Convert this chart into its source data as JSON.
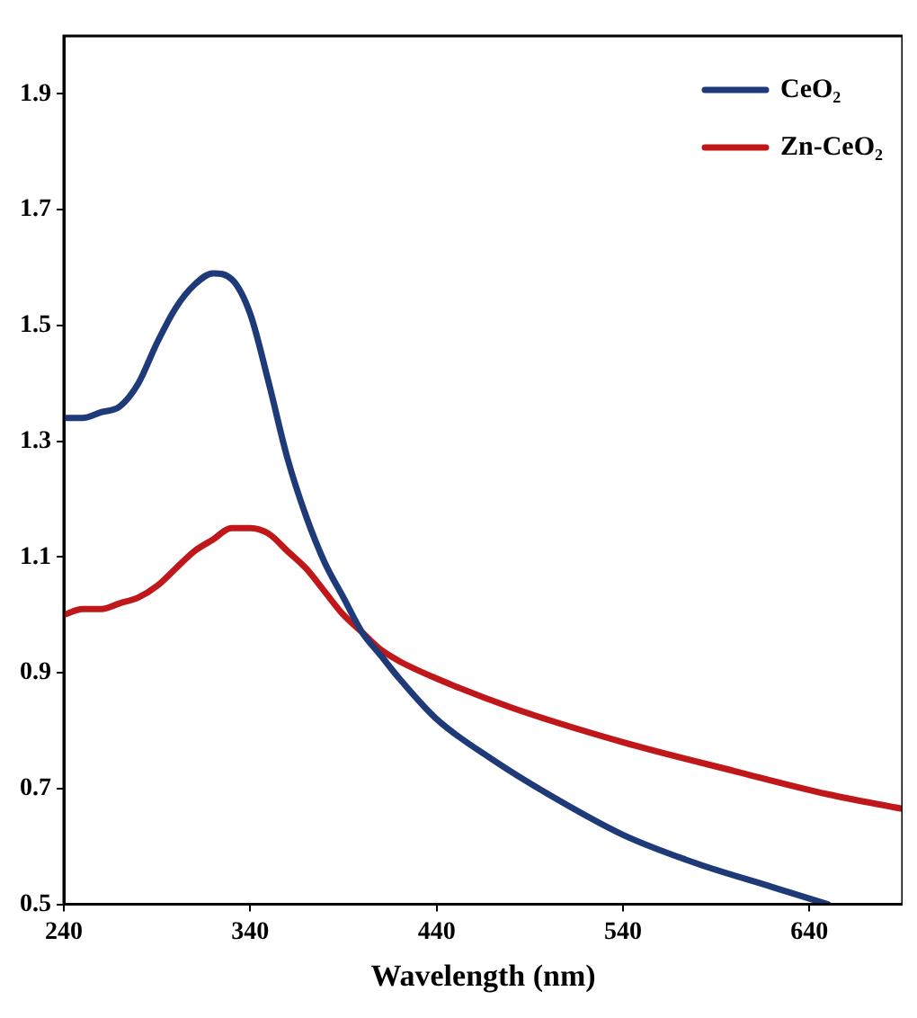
{
  "chart_data": {
    "type": "line",
    "xlabel": "Wavelength (nm)",
    "xlim": [
      240,
      690
    ],
    "xticks": [
      240,
      340,
      440,
      540,
      640
    ],
    "ylim": [
      0.5,
      2.0
    ],
    "yticks": [
      0.5,
      0.7,
      0.9,
      1.1,
      1.3,
      1.5,
      1.7,
      1.9
    ],
    "grid": false,
    "legend": "top right",
    "marker": "none",
    "line_style": "solid",
    "series": [
      {
        "name": "CeO₂",
        "color": "#1f3a78",
        "x": [
          240,
          250,
          260,
          270,
          280,
          290,
          300,
          310,
          320,
          330,
          340,
          350,
          360,
          370,
          380,
          390,
          400,
          410,
          420,
          440,
          470,
          500,
          540,
          580,
          620,
          650
        ],
        "values": [
          1.34,
          1.34,
          1.35,
          1.36,
          1.4,
          1.47,
          1.53,
          1.57,
          1.59,
          1.58,
          1.52,
          1.4,
          1.27,
          1.17,
          1.09,
          1.03,
          0.97,
          0.93,
          0.89,
          0.82,
          0.75,
          0.69,
          0.62,
          0.57,
          0.53,
          0.5
        ]
      },
      {
        "name": "Zn-CeO₂",
        "color": "#c0181a",
        "x": [
          240,
          250,
          260,
          270,
          280,
          290,
          300,
          310,
          320,
          330,
          340,
          350,
          360,
          370,
          380,
          390,
          400,
          410,
          420,
          440,
          480,
          540,
          600,
          650,
          690
        ],
        "values": [
          1.0,
          1.01,
          1.01,
          1.02,
          1.03,
          1.05,
          1.08,
          1.11,
          1.13,
          1.15,
          1.15,
          1.14,
          1.11,
          1.08,
          1.04,
          1.0,
          0.97,
          0.94,
          0.92,
          0.89,
          0.84,
          0.78,
          0.73,
          0.69,
          0.665
        ]
      }
    ]
  }
}
